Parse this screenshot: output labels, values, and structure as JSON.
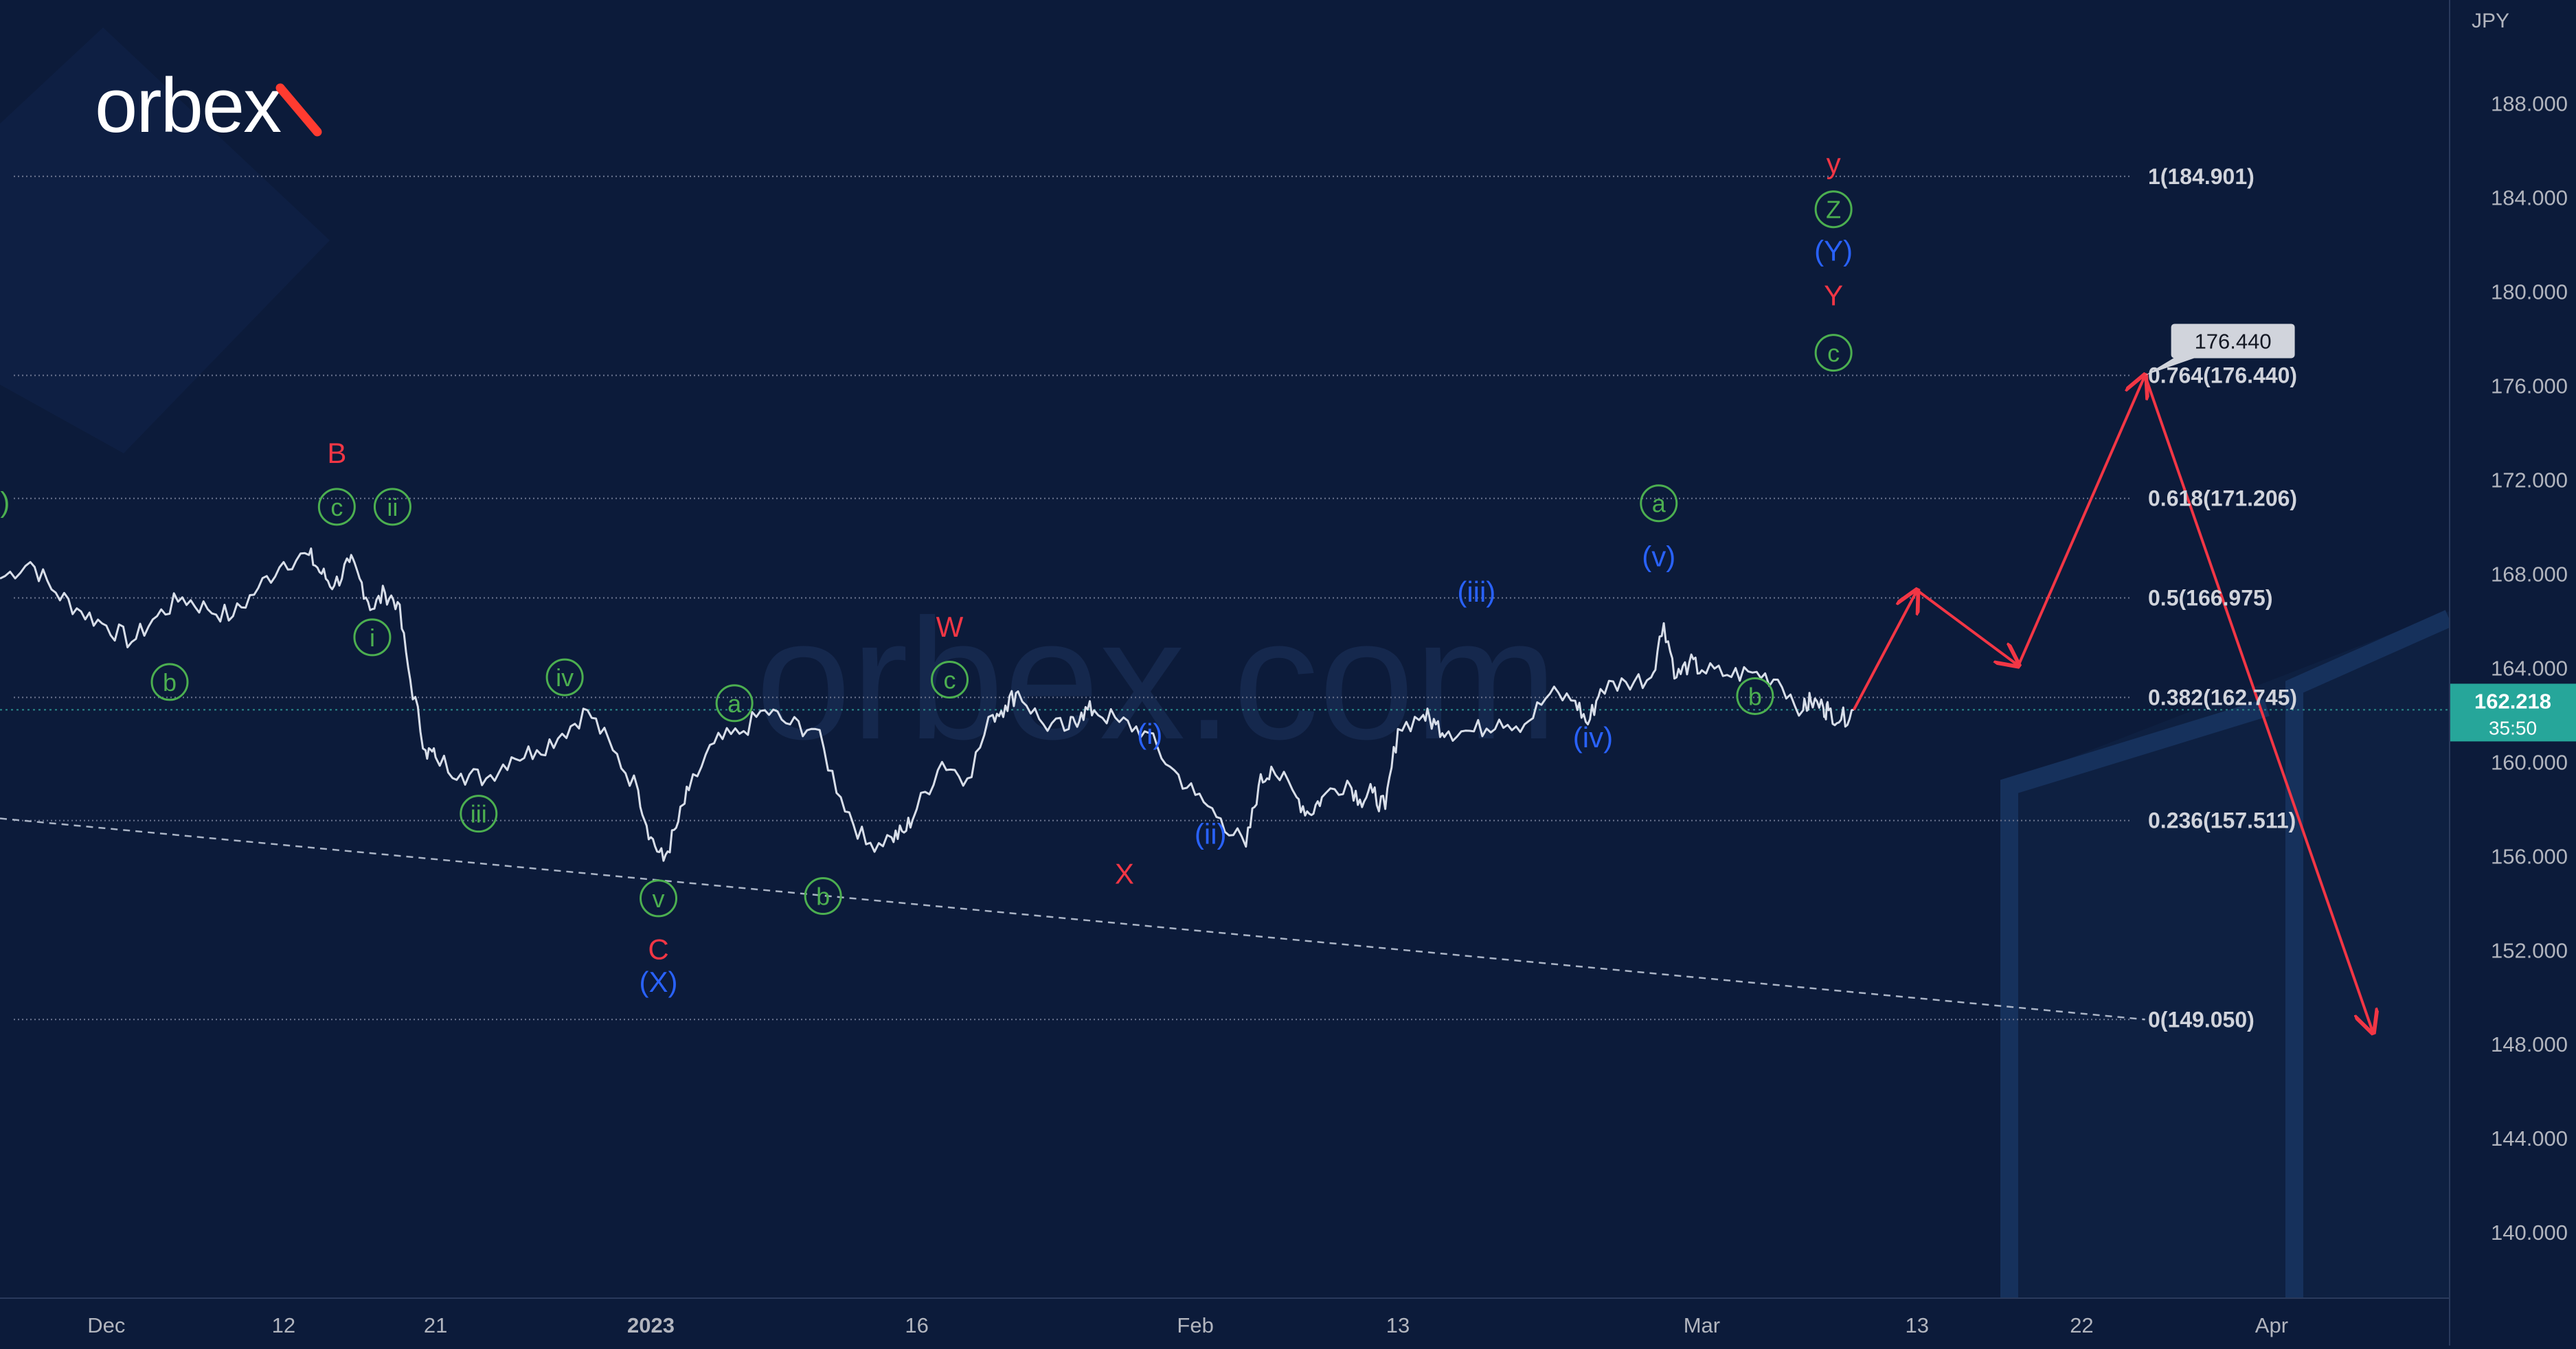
{
  "brand": {
    "logo_text": "orbex",
    "watermark_text": "orbex.com"
  },
  "chart_data": {
    "type": "line",
    "currency": "JPY",
    "price_axis": {
      "ticks": [
        140,
        144,
        148,
        152,
        156,
        160,
        164,
        168,
        172,
        176,
        180,
        184,
        188
      ],
      "tick_labels": [
        "140.000",
        "144.000",
        "148.000",
        "152.000",
        "156.000",
        "160.000",
        "164.000",
        "168.000",
        "172.000",
        "176.000",
        "180.000",
        "184.000",
        "188.000"
      ],
      "ylim": [
        137.2,
        192.4
      ]
    },
    "time_axis": {
      "labels": [
        "Dec",
        "12",
        "21",
        "2023",
        "16",
        "Feb",
        "13",
        "Mar",
        "13",
        "22",
        "Apr"
      ],
      "bold": [
        false,
        false,
        false,
        true,
        false,
        false,
        false,
        false,
        false,
        false,
        false
      ],
      "positions": [
        0,
        7,
        13,
        21.5,
        32,
        43,
        51,
        63,
        71.5,
        78,
        85.5
      ],
      "xlim": [
        -4.2,
        92.5
      ]
    },
    "current_price": {
      "value": 162.218,
      "label": "162.218",
      "countdown": "35:50"
    },
    "fibonacci": [
      {
        "ratio": "1",
        "price": 184.901,
        "label": "1(184.901)"
      },
      {
        "ratio": "0.764",
        "price": 176.44,
        "label": "0.764(176.440)"
      },
      {
        "ratio": "0.618",
        "price": 171.206,
        "label": "0.618(171.206)"
      },
      {
        "ratio": "0.5",
        "price": 166.975,
        "label": "0.5(166.975)"
      },
      {
        "ratio": "0.382",
        "price": 162.745,
        "label": "0.382(162.745)"
      },
      {
        "ratio": "0.236",
        "price": 157.511,
        "label": "0.236(157.511)"
      },
      {
        "ratio": "0",
        "price": 149.05,
        "label": "0(149.050)"
      }
    ],
    "target_callout": {
      "label": "176.440",
      "price": 176.44,
      "x": 80.5
    },
    "trendline": {
      "x": [
        -4.2,
        80.5
      ],
      "price": [
        157.6,
        149.05
      ]
    },
    "price_path": {
      "x": [
        -4.2,
        -3,
        -2,
        -1,
        0,
        1,
        2,
        3,
        4,
        5,
        6,
        7,
        8,
        8.5,
        9,
        9.6,
        10,
        10.5,
        11,
        11.5,
        12,
        12.6,
        13,
        14,
        15,
        16,
        17,
        18,
        19,
        20,
        21,
        21.5,
        22,
        22.5,
        23,
        24,
        25,
        26,
        27,
        28,
        29,
        30,
        31,
        31.5,
        32,
        33,
        34,
        35,
        35.5,
        36,
        37,
        38,
        38.5,
        39,
        40,
        41,
        42,
        43,
        44,
        45,
        45.5,
        46,
        47,
        47.5,
        48,
        49,
        49.5,
        50,
        50.5,
        51,
        52,
        52.5,
        53,
        54,
        55,
        56,
        57,
        58,
        58.5,
        59,
        60,
        61,
        61.5,
        62,
        62.5,
        63,
        64,
        65,
        66,
        67,
        67.3,
        67.8,
        68,
        68.5,
        69
      ],
      "price": [
        167.8,
        168.5,
        167.2,
        166.4,
        165.8,
        165.1,
        166.2,
        167.0,
        166.5,
        166.2,
        167.4,
        168.5,
        168.8,
        168.0,
        167.5,
        168.5,
        167.8,
        166.5,
        167.2,
        166.8,
        163.5,
        160.5,
        160.2,
        159.5,
        159.3,
        160.2,
        160.5,
        161.2,
        162.2,
        160.5,
        158.8,
        156.8,
        155.8,
        157.2,
        158.8,
        160.8,
        161.2,
        162.2,
        161.6,
        161.4,
        158.5,
        156.5,
        156.8,
        157.0,
        158.0,
        160.0,
        159.3,
        162.0,
        162.4,
        163.0,
        161.6,
        161.4,
        162.1,
        162.2,
        161.7,
        161.3,
        159.8,
        158.6,
        157.6,
        156.4,
        159.0,
        159.8,
        158.5,
        157.8,
        158.5,
        159.2,
        158.4,
        158.7,
        158.0,
        161.4,
        162.0,
        161.6,
        161.3,
        161.3,
        161.8,
        161.6,
        162.9,
        162.6,
        161.6,
        163.1,
        163.4,
        163.6,
        165.9,
        163.6,
        164.2,
        163.9,
        163.7,
        163.8,
        163.5,
        162.2,
        162.6,
        162.3,
        162.2,
        161.8,
        162.218
      ]
    },
    "projection": {
      "x": [
        69,
        71.5,
        75.5,
        80.5,
        89.5
      ],
      "price": [
        162.218,
        167.3,
        164.1,
        176.44,
        148.5
      ]
    },
    "wave_labels": [
      {
        "text": ")",
        "x": -4.0,
        "price": 171.0,
        "color": "green",
        "circled": false
      },
      {
        "text": "b",
        "x": 2.5,
        "price": 163.4,
        "color": "green",
        "circled": true
      },
      {
        "text": "c",
        "x": 9.1,
        "price": 170.85,
        "color": "green",
        "circled": true
      },
      {
        "text": "i",
        "x": 10.5,
        "price": 165.3,
        "color": "green",
        "circled": true
      },
      {
        "text": "ii",
        "x": 11.3,
        "price": 170.85,
        "color": "green",
        "circled": true
      },
      {
        "text": "B",
        "x": 9.1,
        "price": 173.1,
        "color": "red",
        "circled": false
      },
      {
        "text": "iii",
        "x": 14.7,
        "price": 157.8,
        "color": "green",
        "circled": true
      },
      {
        "text": "iv",
        "x": 18.1,
        "price": 163.6,
        "color": "green",
        "circled": true
      },
      {
        "text": "v",
        "x": 21.8,
        "price": 154.2,
        "color": "green",
        "circled": true
      },
      {
        "text": "C",
        "x": 21.8,
        "price": 152.0,
        "color": "red",
        "circled": false
      },
      {
        "text": "(X)",
        "x": 21.8,
        "price": 150.6,
        "color": "blue",
        "circled": false
      },
      {
        "text": "a",
        "x": 24.8,
        "price": 162.5,
        "color": "green",
        "circled": true
      },
      {
        "text": "b",
        "x": 28.3,
        "price": 154.3,
        "color": "green",
        "circled": true
      },
      {
        "text": "c",
        "x": 33.3,
        "price": 163.5,
        "color": "green",
        "circled": true
      },
      {
        "text": "W",
        "x": 33.3,
        "price": 165.7,
        "color": "red",
        "circled": false
      },
      {
        "text": "(i)",
        "x": 41.2,
        "price": 161.15,
        "color": "blue",
        "circled": false
      },
      {
        "text": "X",
        "x": 40.2,
        "price": 155.2,
        "color": "red",
        "circled": false
      },
      {
        "text": "(ii)",
        "x": 43.6,
        "price": 156.9,
        "color": "blue",
        "circled": false
      },
      {
        "text": "(iii)",
        "x": 54.1,
        "price": 167.2,
        "color": "blue",
        "circled": false
      },
      {
        "text": "(iv)",
        "x": 58.7,
        "price": 161.0,
        "color": "blue",
        "circled": false
      },
      {
        "text": "(v)",
        "x": 61.3,
        "price": 168.7,
        "color": "blue",
        "circled": false
      },
      {
        "text": "a",
        "x": 61.3,
        "price": 171.0,
        "color": "green",
        "circled": true
      },
      {
        "text": "b",
        "x": 65.1,
        "price": 162.8,
        "color": "green",
        "circled": true
      },
      {
        "text": "c",
        "x": 68.2,
        "price": 177.4,
        "color": "green",
        "circled": true
      },
      {
        "text": "Y",
        "x": 68.2,
        "price": 179.8,
        "color": "red",
        "circled": false
      },
      {
        "text": "(Y)",
        "x": 68.2,
        "price": 181.7,
        "color": "blue",
        "circled": false
      },
      {
        "text": "Z",
        "x": 68.2,
        "price": 183.5,
        "color": "green",
        "circled": true
      },
      {
        "text": "y",
        "x": 68.2,
        "price": 185.4,
        "color": "red",
        "circled": false
      }
    ]
  }
}
